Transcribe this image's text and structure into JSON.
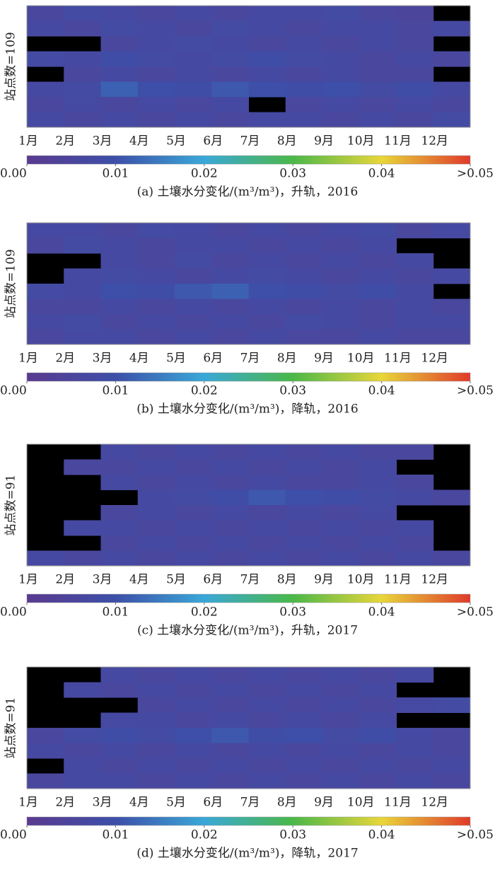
{
  "chart_data": [
    {
      "type": "heatmap",
      "title": "(a) 土壤水分变化/(m³/m³)，升轨，2016",
      "ylabel": "站点数=109",
      "categories": [
        "1月",
        "2月",
        "3月",
        "4月",
        "5月",
        "6月",
        "7月",
        "8月",
        "9月",
        "10月",
        "11月",
        "12月"
      ],
      "zlim": [
        0,
        0.05
      ],
      "colorbar_ticks": [
        {
          "value": 0,
          "label": "0.00"
        },
        0.01,
        0.02,
        0.03,
        0.04,
        {
          "value": 0.05,
          "label": ">0.05"
        }
      ],
      "colorscale": [
        "#5a3a90",
        "#3d4fa8",
        "#3aa8d8",
        "#4ab848",
        "#e8d63a",
        "#e03a2a"
      ],
      "values": [
        [
          0.006,
          0.008,
          0.007,
          0.006,
          0.007,
          0.006,
          0.007,
          0.007,
          0.008,
          0.006,
          0.005,
          null
        ],
        [
          0.007,
          0.006,
          0.008,
          0.007,
          0.006,
          0.008,
          0.007,
          0.006,
          0.007,
          0.007,
          0.006,
          0.007
        ],
        [
          null,
          null,
          0.006,
          0.007,
          0.008,
          0.007,
          0.006,
          0.007,
          0.006,
          0.007,
          0.006,
          null
        ],
        [
          0.008,
          0.007,
          0.009,
          0.008,
          0.007,
          0.008,
          0.009,
          0.008,
          0.007,
          0.006,
          0.007,
          0.006
        ],
        [
          null,
          0.006,
          0.007,
          0.006,
          0.007,
          0.006,
          0.007,
          0.006,
          0.007,
          0.006,
          0.006,
          null
        ],
        [
          0.007,
          0.008,
          0.012,
          0.01,
          0.009,
          0.011,
          0.01,
          0.009,
          0.01,
          0.008,
          0.009,
          0.007
        ],
        [
          0.006,
          0.007,
          0.006,
          0.007,
          0.006,
          0.007,
          null,
          0.006,
          0.007,
          0.006,
          0.007,
          0.006
        ],
        [
          0.007,
          0.006,
          0.007,
          0.006,
          0.007,
          0.006,
          0.007,
          0.007,
          0.006,
          0.007,
          0.006,
          0.008
        ]
      ]
    },
    {
      "type": "heatmap",
      "title": "(b) 土壤水分变化/(m³/m³)，降轨，2016",
      "ylabel": "站点数=109",
      "categories": [
        "1月",
        "2月",
        "3月",
        "4月",
        "5月",
        "6月",
        "7月",
        "8月",
        "9月",
        "10月",
        "11月",
        "12月"
      ],
      "zlim": [
        0,
        0.05
      ],
      "colorbar_ticks": [
        {
          "value": 0,
          "label": "0.00"
        },
        0.01,
        0.02,
        0.03,
        0.04,
        {
          "value": 0.05,
          "label": ">0.05"
        }
      ],
      "colorscale": [
        "#5a3a90",
        "#3d4fa8",
        "#3aa8d8",
        "#4ab848",
        "#e8d63a",
        "#e03a2a"
      ],
      "values": [
        [
          0.007,
          0.007,
          0.006,
          0.008,
          0.007,
          0.006,
          0.007,
          0.006,
          0.007,
          0.008,
          0.006,
          0.007
        ],
        [
          0.006,
          0.008,
          0.007,
          0.006,
          0.007,
          0.007,
          0.006,
          0.007,
          0.006,
          0.007,
          null,
          null
        ],
        [
          null,
          null,
          0.007,
          0.006,
          0.008,
          0.006,
          0.007,
          0.006,
          0.007,
          0.006,
          0.007,
          null
        ],
        [
          null,
          0.007,
          0.008,
          0.007,
          0.006,
          0.007,
          0.008,
          0.007,
          0.006,
          0.007,
          0.006,
          0.007
        ],
        [
          0.008,
          0.007,
          0.01,
          0.009,
          0.011,
          0.012,
          0.01,
          0.009,
          0.008,
          0.009,
          0.007,
          null
        ],
        [
          0.006,
          0.006,
          0.007,
          0.006,
          0.007,
          0.006,
          0.007,
          0.006,
          0.007,
          0.006,
          0.007,
          0.006
        ],
        [
          0.007,
          0.008,
          0.006,
          0.007,
          0.006,
          0.007,
          0.006,
          0.008,
          0.007,
          0.006,
          0.007,
          0.007
        ],
        [
          0.006,
          0.007,
          0.007,
          0.006,
          0.007,
          0.006,
          0.007,
          0.006,
          0.006,
          0.007,
          0.006,
          0.006
        ]
      ]
    },
    {
      "type": "heatmap",
      "title": "(c) 土壤水分变化/(m³/m³)，升轨，2017",
      "ylabel": "站点数=91",
      "categories": [
        "1月",
        "2月",
        "3月",
        "4月",
        "5月",
        "6月",
        "7月",
        "8月",
        "9月",
        "10月",
        "11月",
        "12月"
      ],
      "zlim": [
        0,
        0.05
      ],
      "colorbar_ticks": [
        {
          "value": 0,
          "label": "0.00"
        },
        0.01,
        0.02,
        0.03,
        0.04,
        {
          "value": 0.05,
          "label": ">0.05"
        }
      ],
      "colorscale": [
        "#5a3a90",
        "#3d4fa8",
        "#3aa8d8",
        "#4ab848",
        "#e8d63a",
        "#e03a2a"
      ],
      "values": [
        [
          null,
          null,
          0.007,
          0.006,
          0.007,
          0.006,
          0.007,
          0.006,
          0.007,
          0.006,
          0.006,
          null
        ],
        [
          null,
          0.006,
          0.006,
          0.007,
          0.006,
          0.007,
          0.006,
          0.007,
          0.006,
          0.007,
          null,
          null
        ],
        [
          null,
          null,
          0.007,
          0.006,
          0.007,
          0.006,
          0.007,
          0.006,
          0.006,
          0.007,
          0.006,
          null
        ],
        [
          null,
          null,
          null,
          0.007,
          0.008,
          0.009,
          0.011,
          0.01,
          0.009,
          0.008,
          0.007,
          0.006
        ],
        [
          null,
          null,
          0.006,
          0.007,
          0.006,
          0.007,
          0.006,
          0.007,
          0.006,
          0.007,
          null,
          null
        ],
        [
          null,
          0.007,
          0.007,
          0.006,
          0.007,
          0.006,
          0.007,
          0.006,
          0.007,
          0.006,
          0.007,
          null
        ],
        [
          null,
          null,
          0.006,
          0.007,
          0.006,
          0.007,
          0.006,
          0.007,
          0.006,
          0.007,
          0.006,
          null
        ],
        [
          0.007,
          0.006,
          0.007,
          0.006,
          0.007,
          0.006,
          0.007,
          0.006,
          0.007,
          0.006,
          0.007,
          0.006
        ]
      ]
    },
    {
      "type": "heatmap",
      "title": "(d) 土壤水分变化/(m³/m³)，降轨，2017",
      "ylabel": "站点数=91",
      "categories": [
        "1月",
        "2月",
        "3月",
        "4月",
        "5月",
        "6月",
        "7月",
        "8月",
        "9月",
        "10月",
        "11月",
        "12月"
      ],
      "zlim": [
        0,
        0.05
      ],
      "colorbar_ticks": [
        {
          "value": 0,
          "label": "0.00"
        },
        0.01,
        0.02,
        0.03,
        0.04,
        {
          "value": 0.05,
          "label": ">0.05"
        }
      ],
      "colorscale": [
        "#5a3a90",
        "#3d4fa8",
        "#3aa8d8",
        "#4ab848",
        "#e8d63a",
        "#e03a2a"
      ],
      "values": [
        [
          null,
          null,
          0.007,
          0.006,
          0.007,
          0.006,
          0.007,
          0.006,
          0.007,
          0.006,
          0.007,
          null
        ],
        [
          null,
          0.007,
          0.006,
          0.007,
          0.006,
          0.007,
          0.006,
          0.007,
          0.006,
          0.007,
          null,
          null
        ],
        [
          null,
          null,
          null,
          0.006,
          0.007,
          0.006,
          0.007,
          0.006,
          0.007,
          0.006,
          0.007,
          0.008
        ],
        [
          null,
          null,
          0.007,
          0.007,
          0.006,
          0.007,
          0.006,
          0.007,
          0.006,
          0.007,
          null,
          null
        ],
        [
          0.006,
          0.008,
          0.009,
          0.008,
          0.01,
          0.011,
          0.009,
          0.01,
          0.008,
          0.009,
          0.007,
          0.006
        ],
        [
          0.007,
          0.006,
          0.007,
          0.006,
          0.007,
          0.006,
          0.007,
          0.006,
          0.007,
          0.006,
          0.007,
          0.006
        ],
        [
          null,
          0.007,
          0.006,
          0.007,
          0.006,
          0.007,
          0.006,
          0.007,
          0.006,
          0.007,
          0.006,
          0.007
        ],
        [
          0.006,
          0.007,
          0.007,
          0.006,
          0.007,
          0.006,
          0.007,
          0.006,
          0.007,
          0.006,
          0.007,
          0.006
        ]
      ]
    }
  ]
}
